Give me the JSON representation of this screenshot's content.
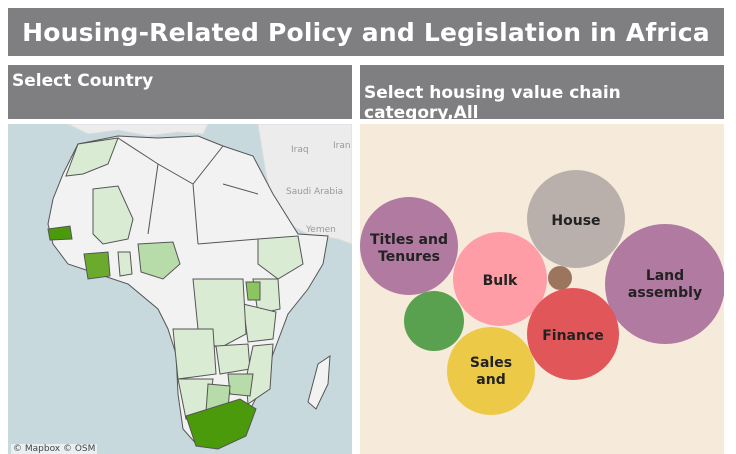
{
  "header": {
    "title": "Housing-Related Policy and Legislation in Africa"
  },
  "country_panel": {
    "heading": "Select Country",
    "map_labels": [
      "Iraq",
      "Iran",
      "Saudi Arabia",
      "Yemen"
    ],
    "attribution": "© Mapbox © OSM"
  },
  "category_panel": {
    "heading": "Select housing value chain category,All",
    "bubbles": [
      {
        "label_lines": [
          "House"
        ],
        "color": "#b9b0ab"
      },
      {
        "label_lines": [
          "Titles and",
          "Tenures"
        ],
        "color": "#b07aa1"
      },
      {
        "label_lines": [
          "Bulk"
        ],
        "color": "#ff9da7"
      },
      {
        "label_lines": [
          "Land",
          "assembly"
        ],
        "color": "#b07aa1"
      },
      {
        "label_lines": [
          "Finance"
        ],
        "color": "#e15759"
      },
      {
        "label_lines": [
          "Sales",
          "and"
        ],
        "color": "#edc948"
      },
      {
        "label_lines": [],
        "color": "#59a14f"
      },
      {
        "label_lines": [],
        "color": "#9c755f"
      }
    ]
  },
  "colors": {
    "header_bg": "#7f7f81",
    "map_water": "#c7d9dc",
    "country_default": "#f2f2f2",
    "country_light": "#d9ebd3",
    "country_mid": "#b8dbaa",
    "country_strong": "#4a9a0c",
    "bubble_bg": "#f6eadb"
  }
}
